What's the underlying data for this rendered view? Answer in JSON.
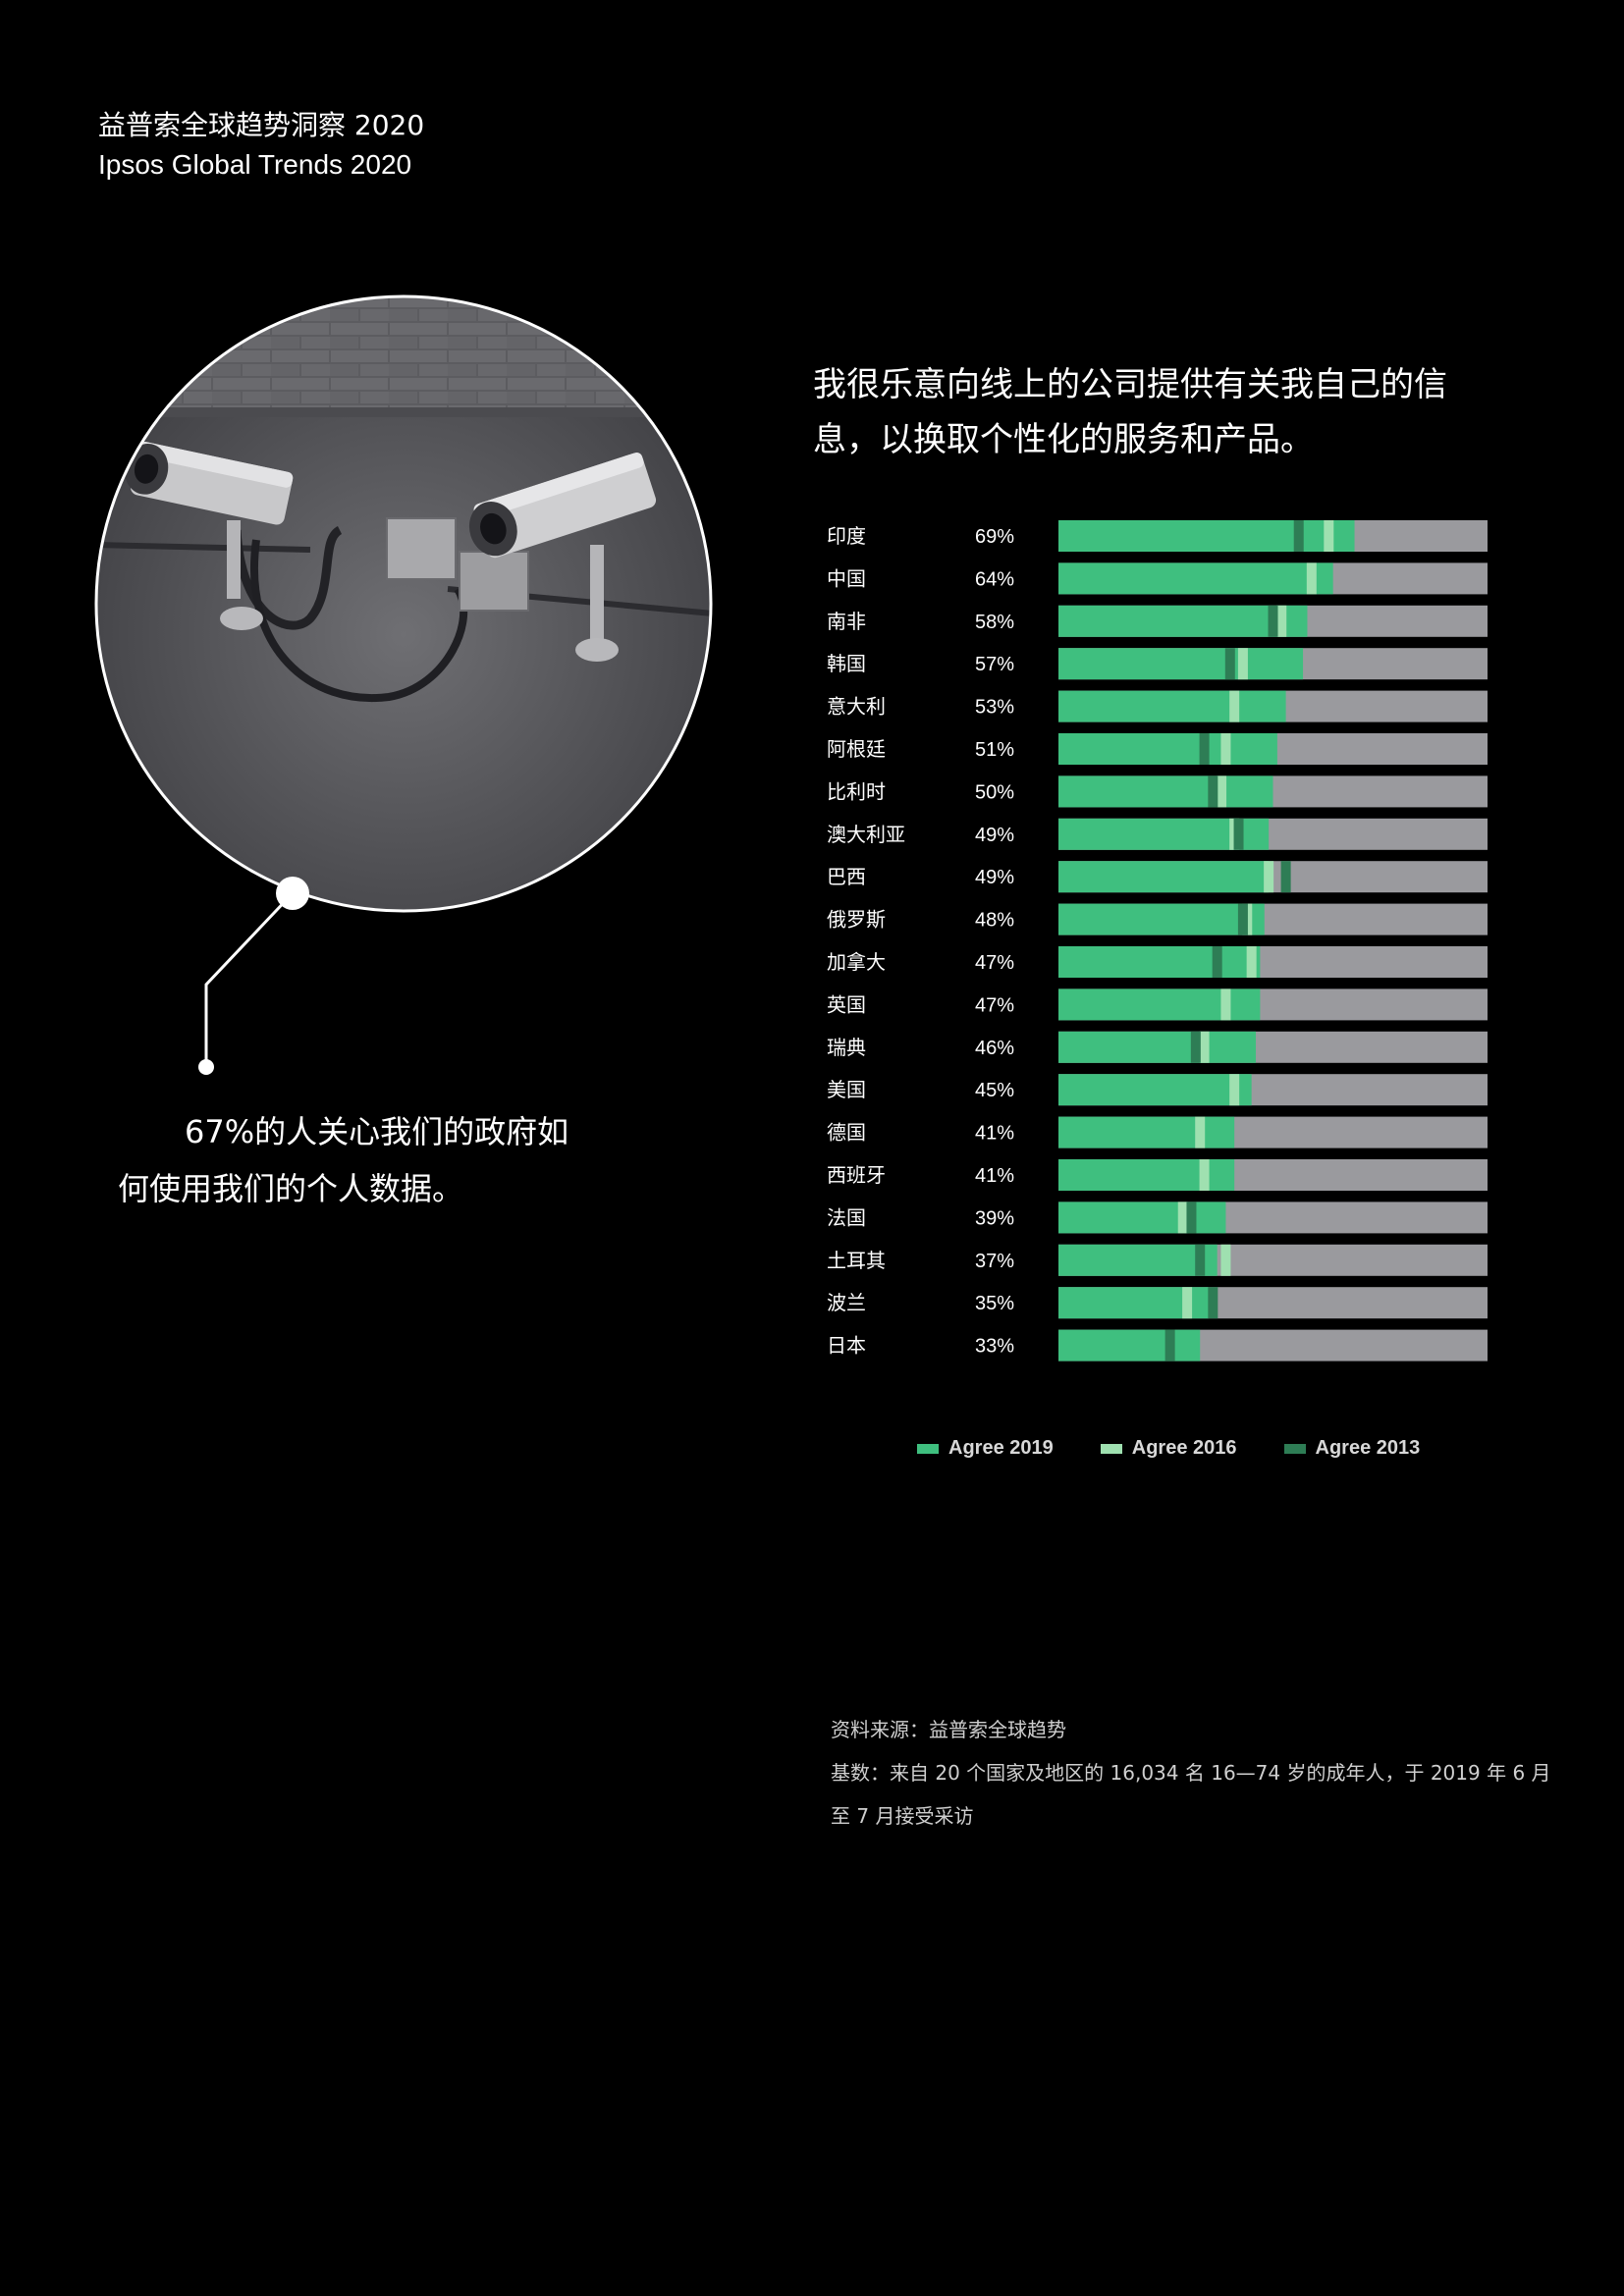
{
  "header": {
    "title_cn": "益普索全球趋势洞察 2020",
    "title_en": "Ipsos Global Trends 2020"
  },
  "callout": {
    "text": "67%的人关心我们的政府如何使用我们的个人数据。"
  },
  "question": {
    "text": "我很乐意向线上的公司提供有关我自己的信息，以换取个性化的服务和产品。"
  },
  "colors": {
    "background": "#000000",
    "agree_2019": "#3fbf7f",
    "agree_2016": "#9fe0b0",
    "agree_2013": "#2e7d55",
    "remainder": "#9a9a9e"
  },
  "chart_data": {
    "type": "bar",
    "orientation": "horizontal",
    "stacked_to": 100,
    "categories": [
      "印度",
      "中国",
      "南非",
      "韩国",
      "意大利",
      "阿根廷",
      "比利时",
      "澳大利亚",
      "巴西",
      "俄罗斯",
      "加拿大",
      "英国",
      "瑞典",
      "美国",
      "德国",
      "西班牙",
      "法国",
      "土耳其",
      "波兰",
      "日本"
    ],
    "value_labels": [
      "69%",
      "64%",
      "58%",
      "57%",
      "53%",
      "51%",
      "50%",
      "49%",
      "49%",
      "48%",
      "47%",
      "47%",
      "46%",
      "45%",
      "41%",
      "41%",
      "39%",
      "37%",
      "35%",
      "33%"
    ],
    "series": [
      {
        "name": "Agree 2019",
        "values": [
          69,
          64,
          58,
          57,
          53,
          51,
          50,
          49,
          49,
          48,
          47,
          47,
          46,
          45,
          41,
          41,
          39,
          37,
          35,
          33
        ]
      },
      {
        "name": "Agree 2016",
        "values": [
          63,
          59,
          52,
          43,
          41,
          39,
          38,
          41,
          49,
          44,
          45,
          39,
          34,
          41,
          33,
          34,
          29,
          39,
          30,
          null
        ]
      },
      {
        "name": "Agree 2013",
        "values": [
          56,
          null,
          50,
          40,
          null,
          34,
          36,
          42,
          53,
          43,
          37,
          null,
          32,
          null,
          null,
          null,
          31,
          33,
          36,
          26
        ]
      }
    ],
    "xlim": [
      0,
      100
    ],
    "legend": "bottom"
  },
  "legend": {
    "items": [
      {
        "label": "Agree 2019",
        "color": "#3fbf7f"
      },
      {
        "label": "Agree 2016",
        "color": "#9fe0b0"
      },
      {
        "label": "Agree 2013",
        "color": "#2e7d55"
      }
    ]
  },
  "source": {
    "line1": "资料来源：益普索全球趋势",
    "line2": "基数：来自 20 个国家及地区的 16,034 名 16—74 岁的成年人，于 2019 年 6 月至 7 月接受采访"
  }
}
